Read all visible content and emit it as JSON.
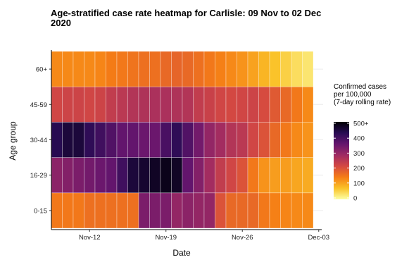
{
  "chart_data": {
    "type": "heatmap",
    "title": "Age-stratified case rate heatmap for Carlisle: 09 Nov to 02 Dec\n2020",
    "xlabel": "Date",
    "ylabel": "Age group",
    "x_ticks": [
      "Nov-12",
      "Nov-19",
      "Nov-26",
      "Dec-03"
    ],
    "dates": [
      "2020-11-09",
      "2020-11-10",
      "2020-11-11",
      "2020-11-12",
      "2020-11-13",
      "2020-11-14",
      "2020-11-15",
      "2020-11-16",
      "2020-11-17",
      "2020-11-18",
      "2020-11-19",
      "2020-11-20",
      "2020-11-21",
      "2020-11-22",
      "2020-11-23",
      "2020-11-24",
      "2020-11-25",
      "2020-11-26",
      "2020-11-27",
      "2020-11-28",
      "2020-11-29",
      "2020-11-30",
      "2020-12-01",
      "2020-12-02"
    ],
    "y_categories": [
      "0-15",
      "16-29",
      "30-44",
      "45-59",
      "60+"
    ],
    "values": {
      "60+": [
        130,
        130,
        130,
        130,
        135,
        145,
        150,
        155,
        160,
        160,
        170,
        175,
        170,
        160,
        150,
        140,
        130,
        120,
        105,
        85,
        70,
        55,
        40,
        30
      ],
      "45-59": [
        220,
        225,
        225,
        220,
        225,
        240,
        250,
        260,
        265,
        270,
        270,
        265,
        260,
        240,
        230,
        220,
        215,
        220,
        225,
        210,
        190,
        170,
        150,
        130
      ],
      "30-44": [
        430,
        450,
        450,
        420,
        400,
        380,
        360,
        360,
        350,
        350,
        390,
        420,
        380,
        340,
        300,
        280,
        260,
        250,
        220,
        200,
        170,
        150,
        130,
        120
      ],
      "16-29": [
        310,
        320,
        330,
        340,
        350,
        360,
        400,
        450,
        460,
        470,
        480,
        470,
        360,
        320,
        280,
        240,
        220,
        200,
        150,
        120,
        110,
        110,
        100,
        95
      ],
      "0-15": [
        150,
        150,
        150,
        160,
        160,
        160,
        160,
        160,
        330,
        330,
        330,
        300,
        310,
        300,
        300,
        200,
        170,
        170,
        170,
        150,
        140,
        135,
        130,
        130
      ]
    },
    "legend": {
      "title": "Confirmed cases\n per 100,000\n (7-day rolling rate)",
      "ticks": [
        "500+",
        "400",
        "300",
        "200",
        "100",
        "0"
      ],
      "range": [
        0,
        500
      ],
      "colors": [
        "#fcffa4",
        "#fac228",
        "#f57d15",
        "#d44842",
        "#9f2a63",
        "#65156e",
        "#280b53",
        "#000004"
      ]
    }
  }
}
